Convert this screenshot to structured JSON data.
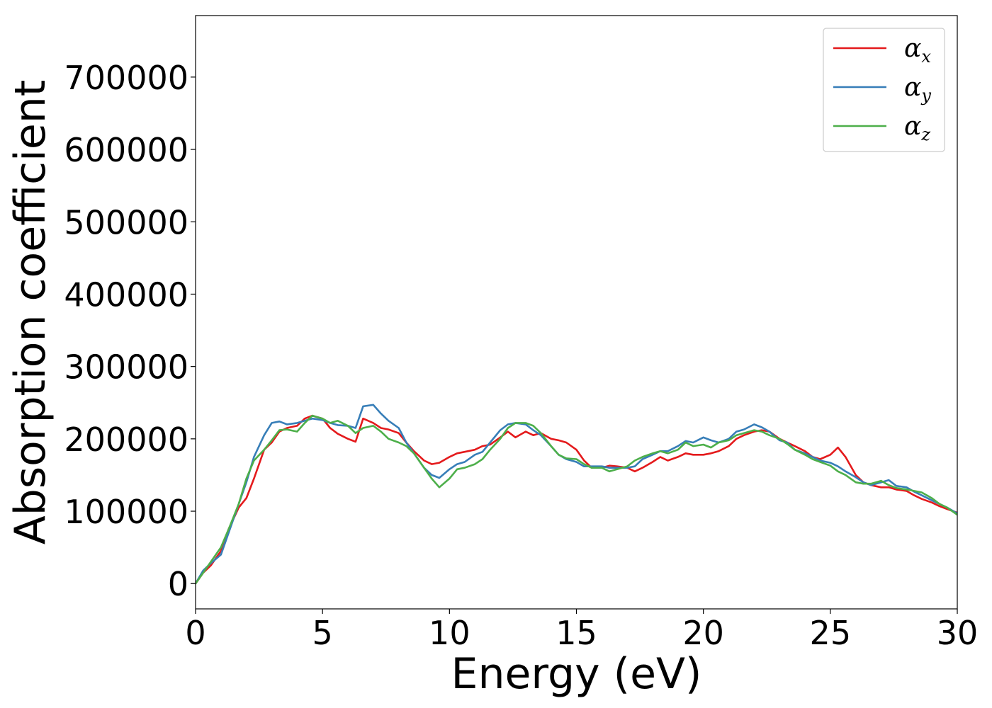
{
  "chart_data": {
    "type": "line",
    "title": "",
    "xlabel": "Energy (eV)",
    "ylabel": "Absorption coefficient",
    "xlim": [
      0,
      30
    ],
    "ylim": [
      -35000,
      785000
    ],
    "xticks": [
      0,
      5,
      10,
      15,
      20,
      25,
      30
    ],
    "xtick_labels": [
      "0",
      "5",
      "10",
      "15",
      "20",
      "25",
      "30"
    ],
    "yticks": [
      0,
      100000,
      200000,
      300000,
      400000,
      500000,
      600000,
      700000
    ],
    "ytick_labels": [
      "0",
      "100000",
      "200000",
      "300000",
      "400000",
      "500000",
      "600000",
      "700000"
    ],
    "grid": false,
    "legend_position": "top-right",
    "series": [
      {
        "name": "α",
        "subscript": "x",
        "color": "#e41a1c",
        "x": [
          0,
          0.3,
          0.6,
          1.0,
          1.3,
          1.7,
          2.0,
          2.3,
          2.7,
          3.0,
          3.3,
          3.6,
          4.0,
          4.3,
          4.6,
          5.0,
          5.3,
          5.6,
          6.0,
          6.3,
          6.6,
          7.0,
          7.3,
          7.6,
          8.0,
          8.3,
          8.6,
          9.0,
          9.3,
          9.6,
          10.0,
          10.3,
          10.6,
          11.0,
          11.3,
          11.6,
          12.0,
          12.3,
          12.6,
          13.0,
          13.3,
          13.6,
          14.0,
          14.3,
          14.6,
          15.0,
          15.3,
          15.6,
          16.0,
          16.3,
          16.6,
          17.0,
          17.3,
          17.6,
          18.0,
          18.3,
          18.6,
          19.0,
          19.3,
          19.6,
          20.0,
          20.3,
          20.6,
          21.0,
          21.3,
          21.6,
          22.0,
          22.3,
          22.6,
          23.0,
          23.3,
          23.6,
          24.0,
          24.3,
          24.6,
          25.0,
          25.3,
          25.6,
          26.0,
          26.3,
          26.6,
          27.0,
          27.3,
          27.6,
          28.0,
          28.3,
          28.6,
          29.0,
          29.3,
          29.6,
          30.0
        ],
        "values": [
          0,
          15000,
          25000,
          45000,
          75000,
          105000,
          118000,
          145000,
          185000,
          195000,
          210000,
          215000,
          218000,
          228000,
          232000,
          228000,
          215000,
          207000,
          200000,
          196000,
          228000,
          222000,
          215000,
          213000,
          208000,
          195000,
          183000,
          170000,
          165000,
          167000,
          175000,
          180000,
          182000,
          185000,
          190000,
          192000,
          202000,
          210000,
          202000,
          210000,
          205000,
          208000,
          200000,
          198000,
          195000,
          185000,
          170000,
          160000,
          160000,
          163000,
          162000,
          160000,
          155000,
          160000,
          168000,
          175000,
          170000,
          175000,
          180000,
          178000,
          178000,
          180000,
          183000,
          190000,
          200000,
          205000,
          210000,
          212000,
          210000,
          200000,
          195000,
          190000,
          183000,
          175000,
          172000,
          178000,
          188000,
          175000,
          150000,
          140000,
          136000,
          133000,
          133000,
          130000,
          128000,
          122000,
          117000,
          112000,
          107000,
          103000,
          98000
        ]
      },
      {
        "name": "α",
        "subscript": "y",
        "color": "#377eb8",
        "x": [
          0,
          0.3,
          0.6,
          1.0,
          1.3,
          1.7,
          2.0,
          2.3,
          2.7,
          3.0,
          3.3,
          3.6,
          4.0,
          4.3,
          4.6,
          5.0,
          5.3,
          5.6,
          6.0,
          6.3,
          6.6,
          7.0,
          7.3,
          7.6,
          8.0,
          8.3,
          8.6,
          9.0,
          9.3,
          9.6,
          10.0,
          10.3,
          10.6,
          11.0,
          11.3,
          11.6,
          12.0,
          12.3,
          12.6,
          13.0,
          13.3,
          13.6,
          14.0,
          14.3,
          14.6,
          15.0,
          15.3,
          15.6,
          16.0,
          16.3,
          16.6,
          17.0,
          17.3,
          17.6,
          18.0,
          18.3,
          18.6,
          19.0,
          19.3,
          19.6,
          20.0,
          20.3,
          20.6,
          21.0,
          21.3,
          21.6,
          22.0,
          22.3,
          22.6,
          23.0,
          23.3,
          23.6,
          24.0,
          24.3,
          24.6,
          25.0,
          25.3,
          25.6,
          26.0,
          26.3,
          26.6,
          27.0,
          27.3,
          27.6,
          28.0,
          28.3,
          28.6,
          29.0,
          29.3,
          29.6,
          30.0
        ],
        "values": [
          0,
          18000,
          28000,
          40000,
          70000,
          110000,
          140000,
          175000,
          205000,
          222000,
          224000,
          220000,
          222000,
          225000,
          228000,
          226000,
          222000,
          219000,
          218000,
          215000,
          245000,
          247000,
          235000,
          225000,
          215000,
          195000,
          180000,
          160000,
          150000,
          146000,
          158000,
          165000,
          168000,
          178000,
          182000,
          195000,
          212000,
          220000,
          222000,
          220000,
          212000,
          205000,
          190000,
          178000,
          172000,
          168000,
          162000,
          162000,
          162000,
          160000,
          160000,
          160000,
          162000,
          172000,
          178000,
          183000,
          183000,
          190000,
          197000,
          195000,
          202000,
          198000,
          195000,
          200000,
          210000,
          213000,
          220000,
          216000,
          210000,
          198000,
          195000,
          185000,
          180000,
          175000,
          170000,
          167000,
          162000,
          155000,
          147000,
          140000,
          136000,
          140000,
          143000,
          135000,
          133000,
          127000,
          122000,
          115000,
          110000,
          105000,
          97000
        ]
      },
      {
        "name": "α",
        "subscript": "z",
        "color": "#4daf4a",
        "x": [
          0,
          0.3,
          0.6,
          1.0,
          1.3,
          1.7,
          2.0,
          2.3,
          2.7,
          3.0,
          3.3,
          3.6,
          4.0,
          4.3,
          4.6,
          5.0,
          5.3,
          5.6,
          6.0,
          6.3,
          6.6,
          7.0,
          7.3,
          7.6,
          8.0,
          8.3,
          8.6,
          9.0,
          9.3,
          9.6,
          10.0,
          10.3,
          10.6,
          11.0,
          11.3,
          11.6,
          12.0,
          12.3,
          12.6,
          13.0,
          13.3,
          13.6,
          14.0,
          14.3,
          14.6,
          15.0,
          15.3,
          15.6,
          16.0,
          16.3,
          16.6,
          17.0,
          17.3,
          17.6,
          18.0,
          18.3,
          18.6,
          19.0,
          19.3,
          19.6,
          20.0,
          20.3,
          20.6,
          21.0,
          21.3,
          21.6,
          22.0,
          22.3,
          22.6,
          23.0,
          23.3,
          23.6,
          24.0,
          24.3,
          24.6,
          25.0,
          25.3,
          25.6,
          26.0,
          26.3,
          26.6,
          27.0,
          27.3,
          27.6,
          28.0,
          28.3,
          28.6,
          29.0,
          29.3,
          29.6,
          30.0
        ],
        "values": [
          0,
          15000,
          30000,
          50000,
          75000,
          110000,
          145000,
          170000,
          185000,
          198000,
          212000,
          213000,
          210000,
          222000,
          232000,
          228000,
          222000,
          225000,
          218000,
          208000,
          215000,
          218000,
          210000,
          200000,
          195000,
          190000,
          180000,
          160000,
          145000,
          133000,
          145000,
          158000,
          160000,
          165000,
          172000,
          185000,
          200000,
          215000,
          222000,
          222000,
          218000,
          208000,
          190000,
          178000,
          173000,
          172000,
          165000,
          160000,
          160000,
          155000,
          158000,
          162000,
          170000,
          175000,
          180000,
          183000,
          180000,
          185000,
          195000,
          190000,
          192000,
          188000,
          195000,
          198000,
          205000,
          208000,
          212000,
          210000,
          205000,
          200000,
          193000,
          185000,
          178000,
          172000,
          168000,
          163000,
          155000,
          150000,
          140000,
          138000,
          138000,
          142000,
          136000,
          132000,
          130000,
          128000,
          126000,
          118000,
          110000,
          105000,
          95000
        ]
      }
    ]
  }
}
